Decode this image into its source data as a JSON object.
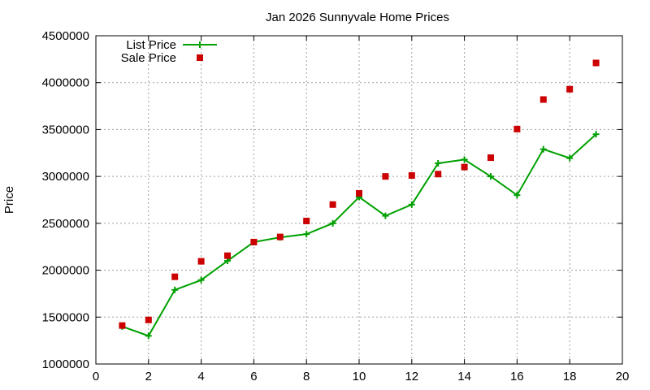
{
  "chart_data": {
    "type": "line",
    "title": "Jan 2026 Sunnyvale Home Prices",
    "xlabel": "",
    "ylabel": "Price",
    "xlim": [
      0,
      20
    ],
    "ylim": [
      1000000,
      4500000
    ],
    "x_ticks": [
      0,
      2,
      4,
      6,
      8,
      10,
      12,
      14,
      16,
      18,
      20
    ],
    "y_ticks": [
      1000000,
      1500000,
      2000000,
      2500000,
      3000000,
      3500000,
      4000000,
      4500000
    ],
    "grid": true,
    "legend_position": "top-left",
    "x": [
      1,
      2,
      3,
      4,
      5,
      6,
      7,
      8,
      9,
      10,
      11,
      12,
      13,
      14,
      15,
      16,
      17,
      18,
      19
    ],
    "series": [
      {
        "name": "List Price",
        "style": "line-with-plus-markers",
        "color": "#00a000",
        "values": [
          1400000,
          1300000,
          1790000,
          1895000,
          2100000,
          2300000,
          2350000,
          2385000,
          2500000,
          2780000,
          2580000,
          2700000,
          3140000,
          3180000,
          3000000,
          2800000,
          3290000,
          3195000,
          3450000
        ]
      },
      {
        "name": "Sale Price",
        "style": "square-markers",
        "color": "#cc0000",
        "values": [
          1410000,
          1470000,
          1930000,
          2095000,
          2155000,
          2300000,
          2355000,
          2525000,
          2700000,
          2820000,
          3000000,
          3010000,
          3025000,
          3100000,
          3200000,
          3505000,
          3820000,
          3930000,
          4210000
        ]
      }
    ]
  }
}
